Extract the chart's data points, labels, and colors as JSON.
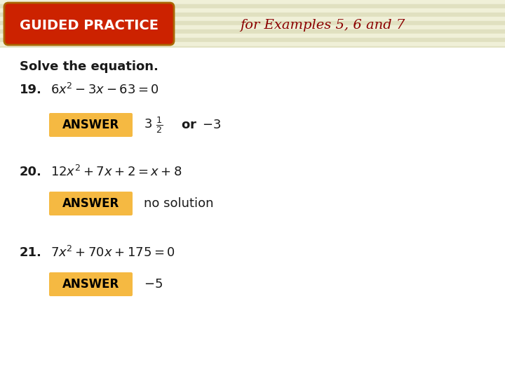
{
  "bg_stripe_color": "#f0f0d8",
  "bg_stripe_dark": "#e0e0c0",
  "body_bg": "#ffffff",
  "header_pill_color": "#cc2200",
  "header_pill_border": "#cc8800",
  "header_text": "GUIDED PRACTICE",
  "header_text_color": "#ffffff",
  "subheader_text": "for Examples 5, 6 and 7",
  "subheader_text_color": "#8B0000",
  "solve_text": "Solve the equation.",
  "q19_num": "19.",
  "q20_num": "20.",
  "q21_num": "21.",
  "answer_box_color": "#f5b942",
  "answer_text": "ANSWER",
  "ans20_text": "no solution",
  "ans21_text": "-5"
}
